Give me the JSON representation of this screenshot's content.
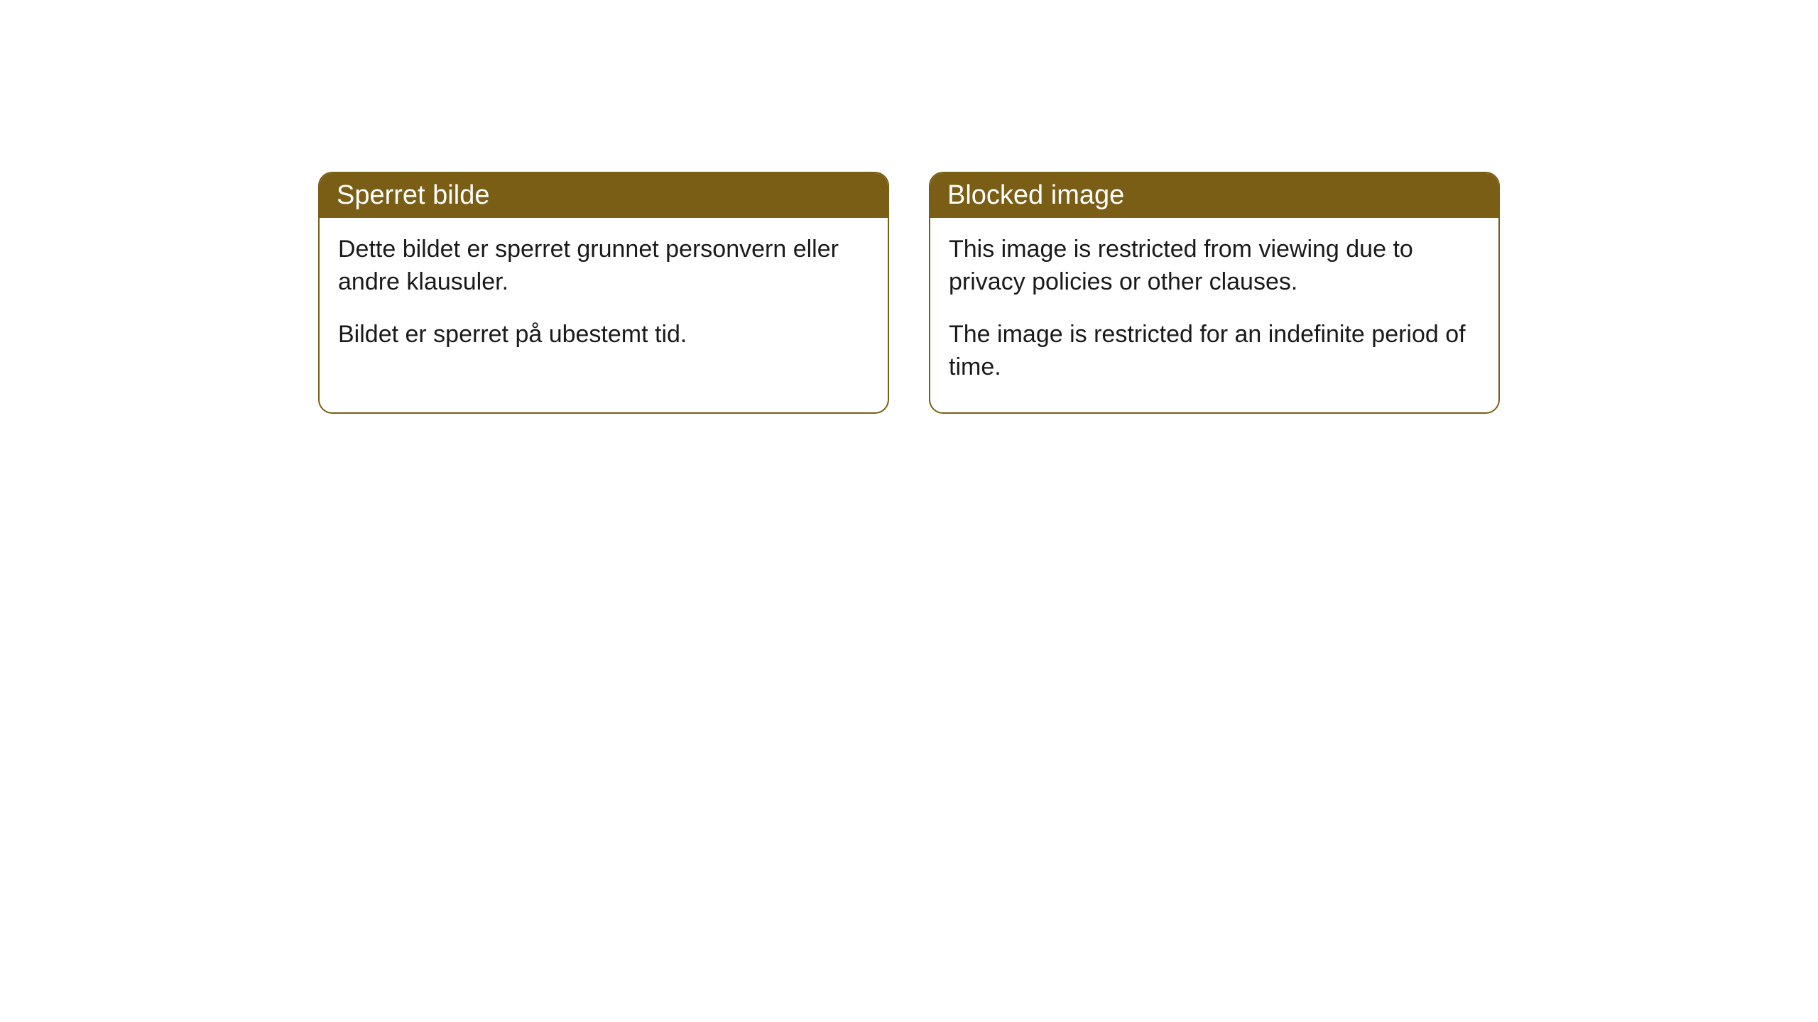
{
  "cards": [
    {
      "title": "Sperret bilde",
      "paragraph1": "Dette bildet er sperret grunnet personvern eller andre klausuler.",
      "paragraph2": "Bildet er sperret på ubestemt tid."
    },
    {
      "title": "Blocked image",
      "paragraph1": "This image is restricted from viewing due to privacy policies or other clauses.",
      "paragraph2": "The image is restricted for an indefinite period of time."
    }
  ],
  "style": {
    "header_bg_color": "#7a5e15",
    "header_text_color": "#ffffff",
    "body_bg_color": "#ffffff",
    "body_text_color": "#1a1a1a",
    "border_color": "#7a5e15",
    "border_radius": 20,
    "title_fontsize": 38,
    "body_fontsize": 34
  }
}
